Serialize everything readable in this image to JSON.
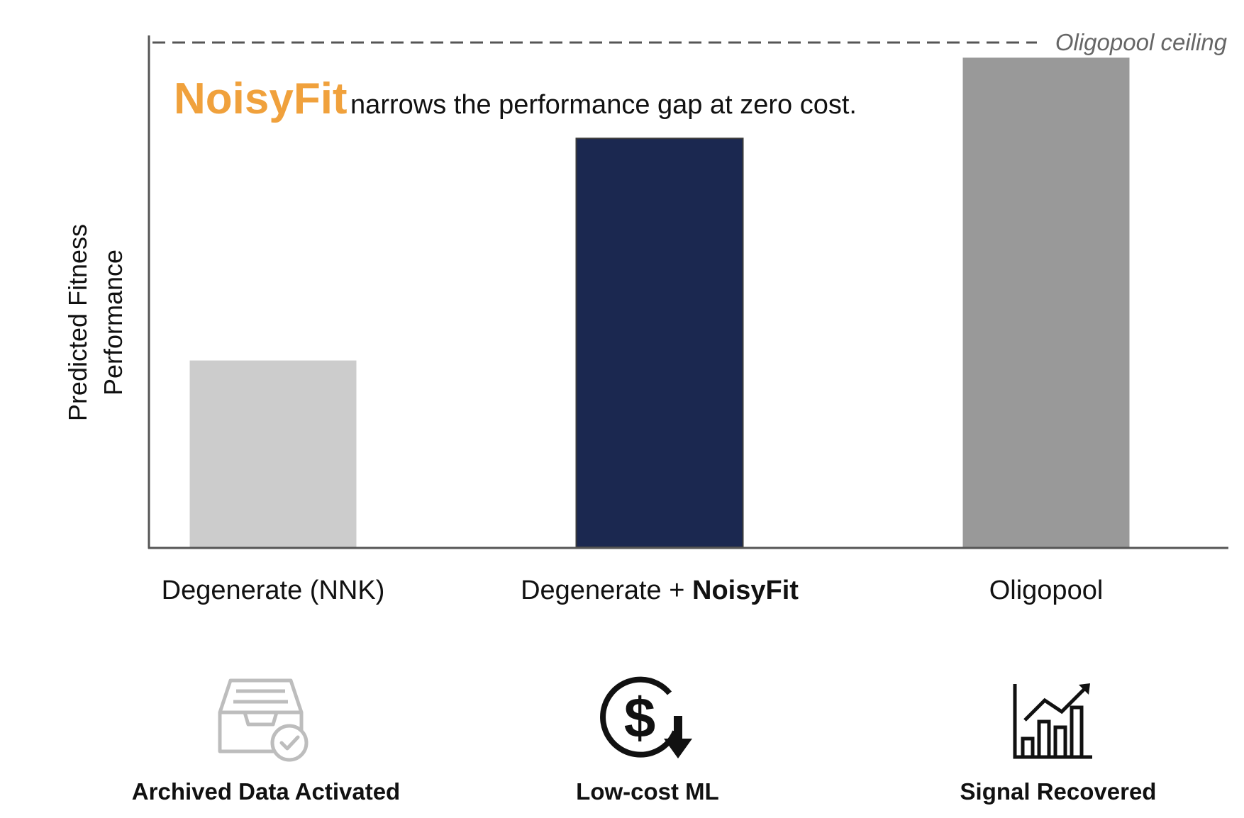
{
  "chart_data": {
    "type": "bar",
    "title_highlight": "NoisyFit",
    "title_rest": " narrows the performance gap at zero cost.",
    "ylabel_line1": "Predicted Fitness",
    "ylabel_line2": "Performance",
    "xlabel": "",
    "categories": [
      {
        "prefix": "Degenerate (NNK)",
        "bold": ""
      },
      {
        "prefix": "Degenerate + ",
        "bold": "NoisyFit"
      },
      {
        "prefix": "Oligopool",
        "bold": ""
      }
    ],
    "values": [
      0.37,
      0.81,
      0.97
    ],
    "ylim": [
      0,
      1
    ],
    "ceiling": {
      "value": 1.0,
      "label": "Oligopool ceiling"
    },
    "grid": false,
    "colors": {
      "bars": [
        "#cccccc",
        "#1b2850",
        "#999999"
      ],
      "highlight": "#f0a13c",
      "axis": "#555555"
    }
  },
  "features": [
    {
      "label": "Archived Data Activated",
      "icon": "archive-check-icon"
    },
    {
      "label": "Low-cost ML",
      "icon": "dollar-down-icon"
    },
    {
      "label": "Signal Recovered",
      "icon": "growth-chart-icon"
    }
  ]
}
